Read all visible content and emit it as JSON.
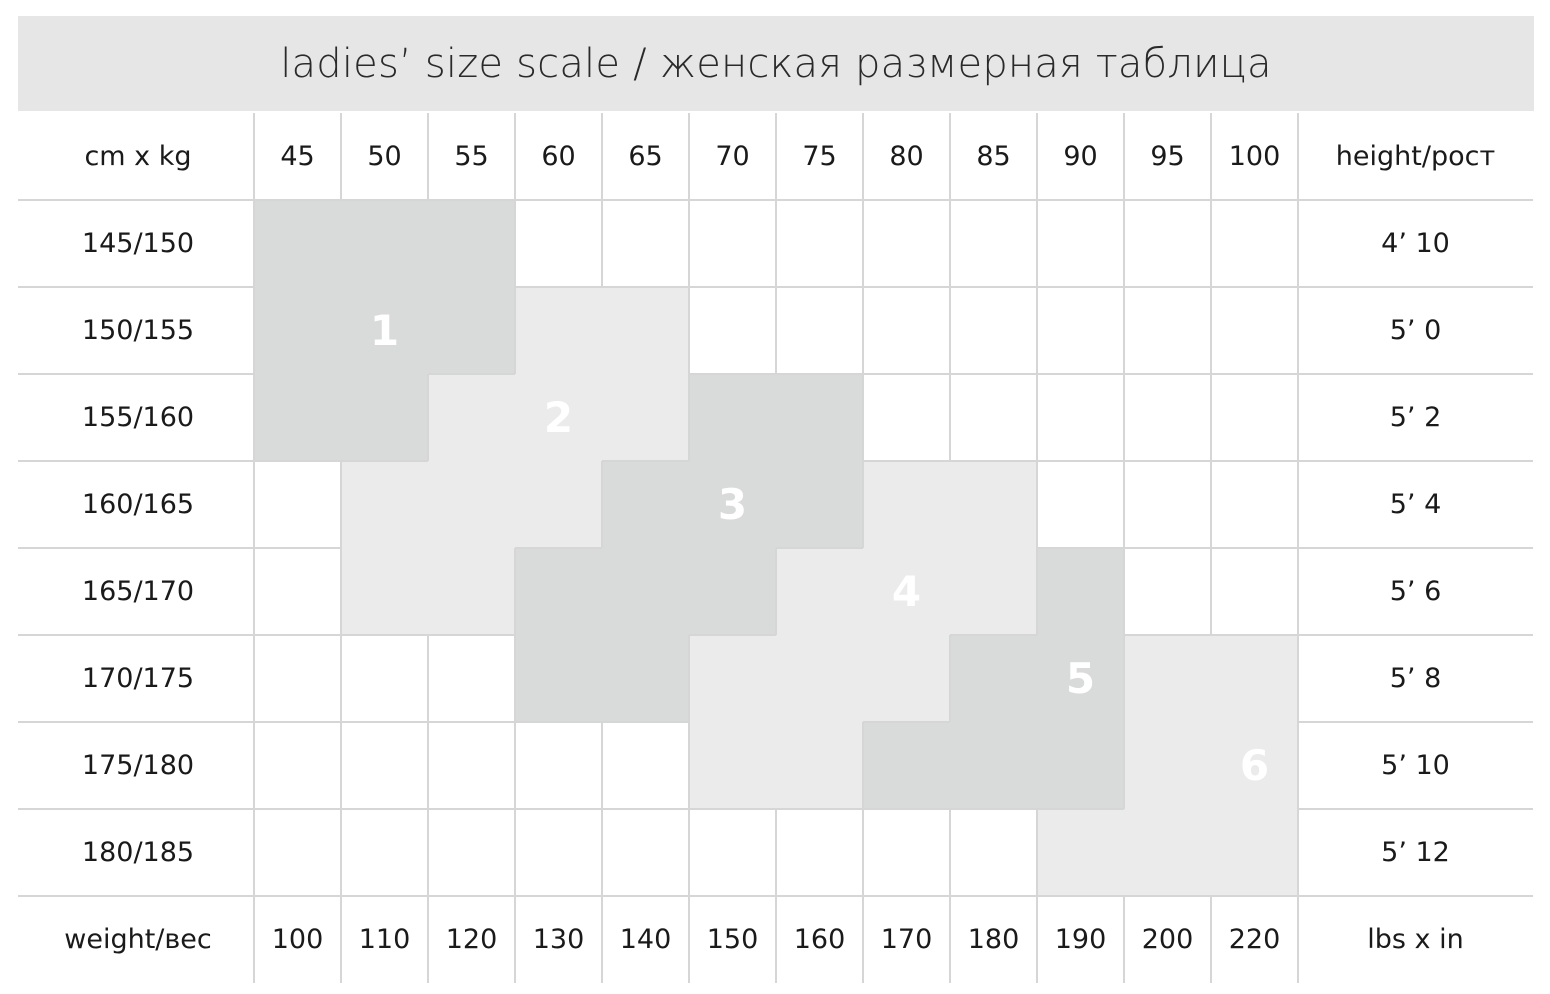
{
  "title": "ladies’ size scale / женская размерная таблица",
  "header": {
    "corner": "cm x kg",
    "weights_kg": [
      "45",
      "50",
      "55",
      "60",
      "65",
      "70",
      "75",
      "80",
      "85",
      "90",
      "95",
      "100"
    ],
    "height_col": "height/рост"
  },
  "rows": [
    {
      "cm": "145/150",
      "in": "4’ 10"
    },
    {
      "cm": "150/155",
      "in": "5’ 0"
    },
    {
      "cm": "155/160",
      "in": "5’ 2"
    },
    {
      "cm": "160/165",
      "in": "5’ 4"
    },
    {
      "cm": "165/170",
      "in": "5’ 6"
    },
    {
      "cm": "170/175",
      "in": "5’ 8"
    },
    {
      "cm": "175/180",
      "in": "5’ 10"
    },
    {
      "cm": "180/185",
      "in": "5’ 12"
    }
  ],
  "footer": {
    "corner": "weight/вес",
    "weights_lbs": [
      "100",
      "110",
      "120",
      "130",
      "140",
      "150",
      "160",
      "170",
      "180",
      "190",
      "200",
      "220"
    ],
    "units": "lbs x in"
  },
  "colors": {
    "title_bg": "#e6e6e6",
    "size_odd": "#d9dada",
    "size_even": "#ebebeb",
    "grid": "#d6d6d6",
    "size_label": "#ffffff"
  },
  "chart_data": {
    "type": "heatmap",
    "title": "ladies’ size scale / женская размерная таблица",
    "x_categories": [
      "45",
      "50",
      "55",
      "60",
      "65",
      "70",
      "75",
      "80",
      "85",
      "90",
      "95",
      "100"
    ],
    "y_categories": [
      "145/150",
      "150/155",
      "155/160",
      "160/165",
      "165/170",
      "170/175",
      "175/180",
      "180/185"
    ],
    "matrix": [
      [
        1,
        1,
        1,
        0,
        0,
        0,
        0,
        0,
        0,
        0,
        0,
        0
      ],
      [
        1,
        1,
        1,
        2,
        2,
        0,
        0,
        0,
        0,
        0,
        0,
        0
      ],
      [
        1,
        1,
        2,
        2,
        2,
        3,
        3,
        0,
        0,
        0,
        0,
        0
      ],
      [
        0,
        2,
        2,
        2,
        3,
        3,
        3,
        4,
        4,
        0,
        0,
        0
      ],
      [
        0,
        2,
        2,
        3,
        3,
        3,
        4,
        4,
        4,
        5,
        0,
        0
      ],
      [
        0,
        0,
        0,
        3,
        3,
        4,
        4,
        4,
        5,
        5,
        6,
        6
      ],
      [
        0,
        0,
        0,
        0,
        0,
        4,
        4,
        5,
        5,
        5,
        6,
        6
      ],
      [
        0,
        0,
        0,
        0,
        0,
        0,
        0,
        0,
        0,
        6,
        6,
        6
      ]
    ],
    "size_labels": [
      {
        "label": "1",
        "row": 1,
        "col": 1
      },
      {
        "label": "2",
        "row": 2,
        "col": 3
      },
      {
        "label": "3",
        "row": 3,
        "col": 5
      },
      {
        "label": "4",
        "row": 4,
        "col": 7
      },
      {
        "label": "5",
        "row": 5,
        "col": 9
      },
      {
        "label": "6",
        "row": 6,
        "col": 11
      }
    ]
  }
}
